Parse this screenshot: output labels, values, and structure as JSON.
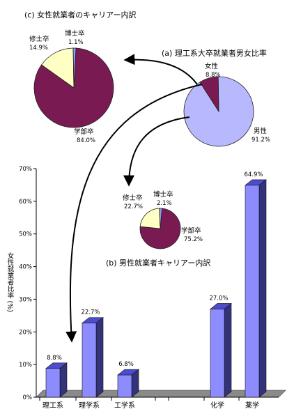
{
  "chart_data": [
    {
      "id": "c",
      "type": "pie",
      "title": "(c) 女性就業者のキャリアー内訳",
      "slices": [
        {
          "label": "学部卒",
          "value": 84.0,
          "value_label": "84.0%"
        },
        {
          "label": "修士卒",
          "value": 14.9,
          "value_label": "14.9%"
        },
        {
          "label": "博士卒",
          "value": 1.1,
          "value_label": "1.1%"
        }
      ]
    },
    {
      "id": "a",
      "type": "pie",
      "title": "(a) 理工系大卒就業者男女比率",
      "slices": [
        {
          "label": "男性",
          "value": 91.2,
          "value_label": "91.2%"
        },
        {
          "label": "女性",
          "value": 8.8,
          "value_label": "8.8%"
        }
      ]
    },
    {
      "id": "b",
      "type": "pie",
      "title": "(b) 男性就業者キャリアー内訳",
      "slices": [
        {
          "label": "学部卒",
          "value": 75.2,
          "value_label": "75.2%"
        },
        {
          "label": "修士卒",
          "value": 22.7,
          "value_label": "22.7%"
        },
        {
          "label": "博士卒",
          "value": 2.1,
          "value_label": "2.1%"
        }
      ]
    },
    {
      "id": "bar",
      "type": "bar",
      "categories": [
        "理工系",
        "理学系",
        "工学系",
        "",
        "化学",
        "薬学"
      ],
      "values": [
        8.8,
        22.7,
        6.8,
        null,
        27.0,
        64.9
      ],
      "value_labels": [
        "8.8%",
        "22.7%",
        "6.8%",
        "",
        "27.0%",
        "64.9%"
      ],
      "ylabel": "女性就業者比率 (%)",
      "ylim": [
        0,
        70
      ],
      "yticks": [
        0,
        10,
        20,
        30,
        40,
        50,
        60,
        70
      ],
      "ytick_labels": [
        "0%",
        "10%",
        "20%",
        "30%",
        "40%",
        "50%",
        "60%",
        "70%"
      ],
      "grid": false,
      "colors": {
        "front": "#8c8cff",
        "side": "#33337a",
        "top": "#4c4ccc"
      }
    }
  ],
  "colors": {
    "maroon": "#7a1a52",
    "cream": "#ffffc4",
    "blue": "#9a9aff",
    "lightblue": "#b8b8ff",
    "bar_front": "#8c8cff",
    "bar_side": "#33337a",
    "bar_top": "#4c4ccc",
    "floor": "#8a8a8a"
  }
}
